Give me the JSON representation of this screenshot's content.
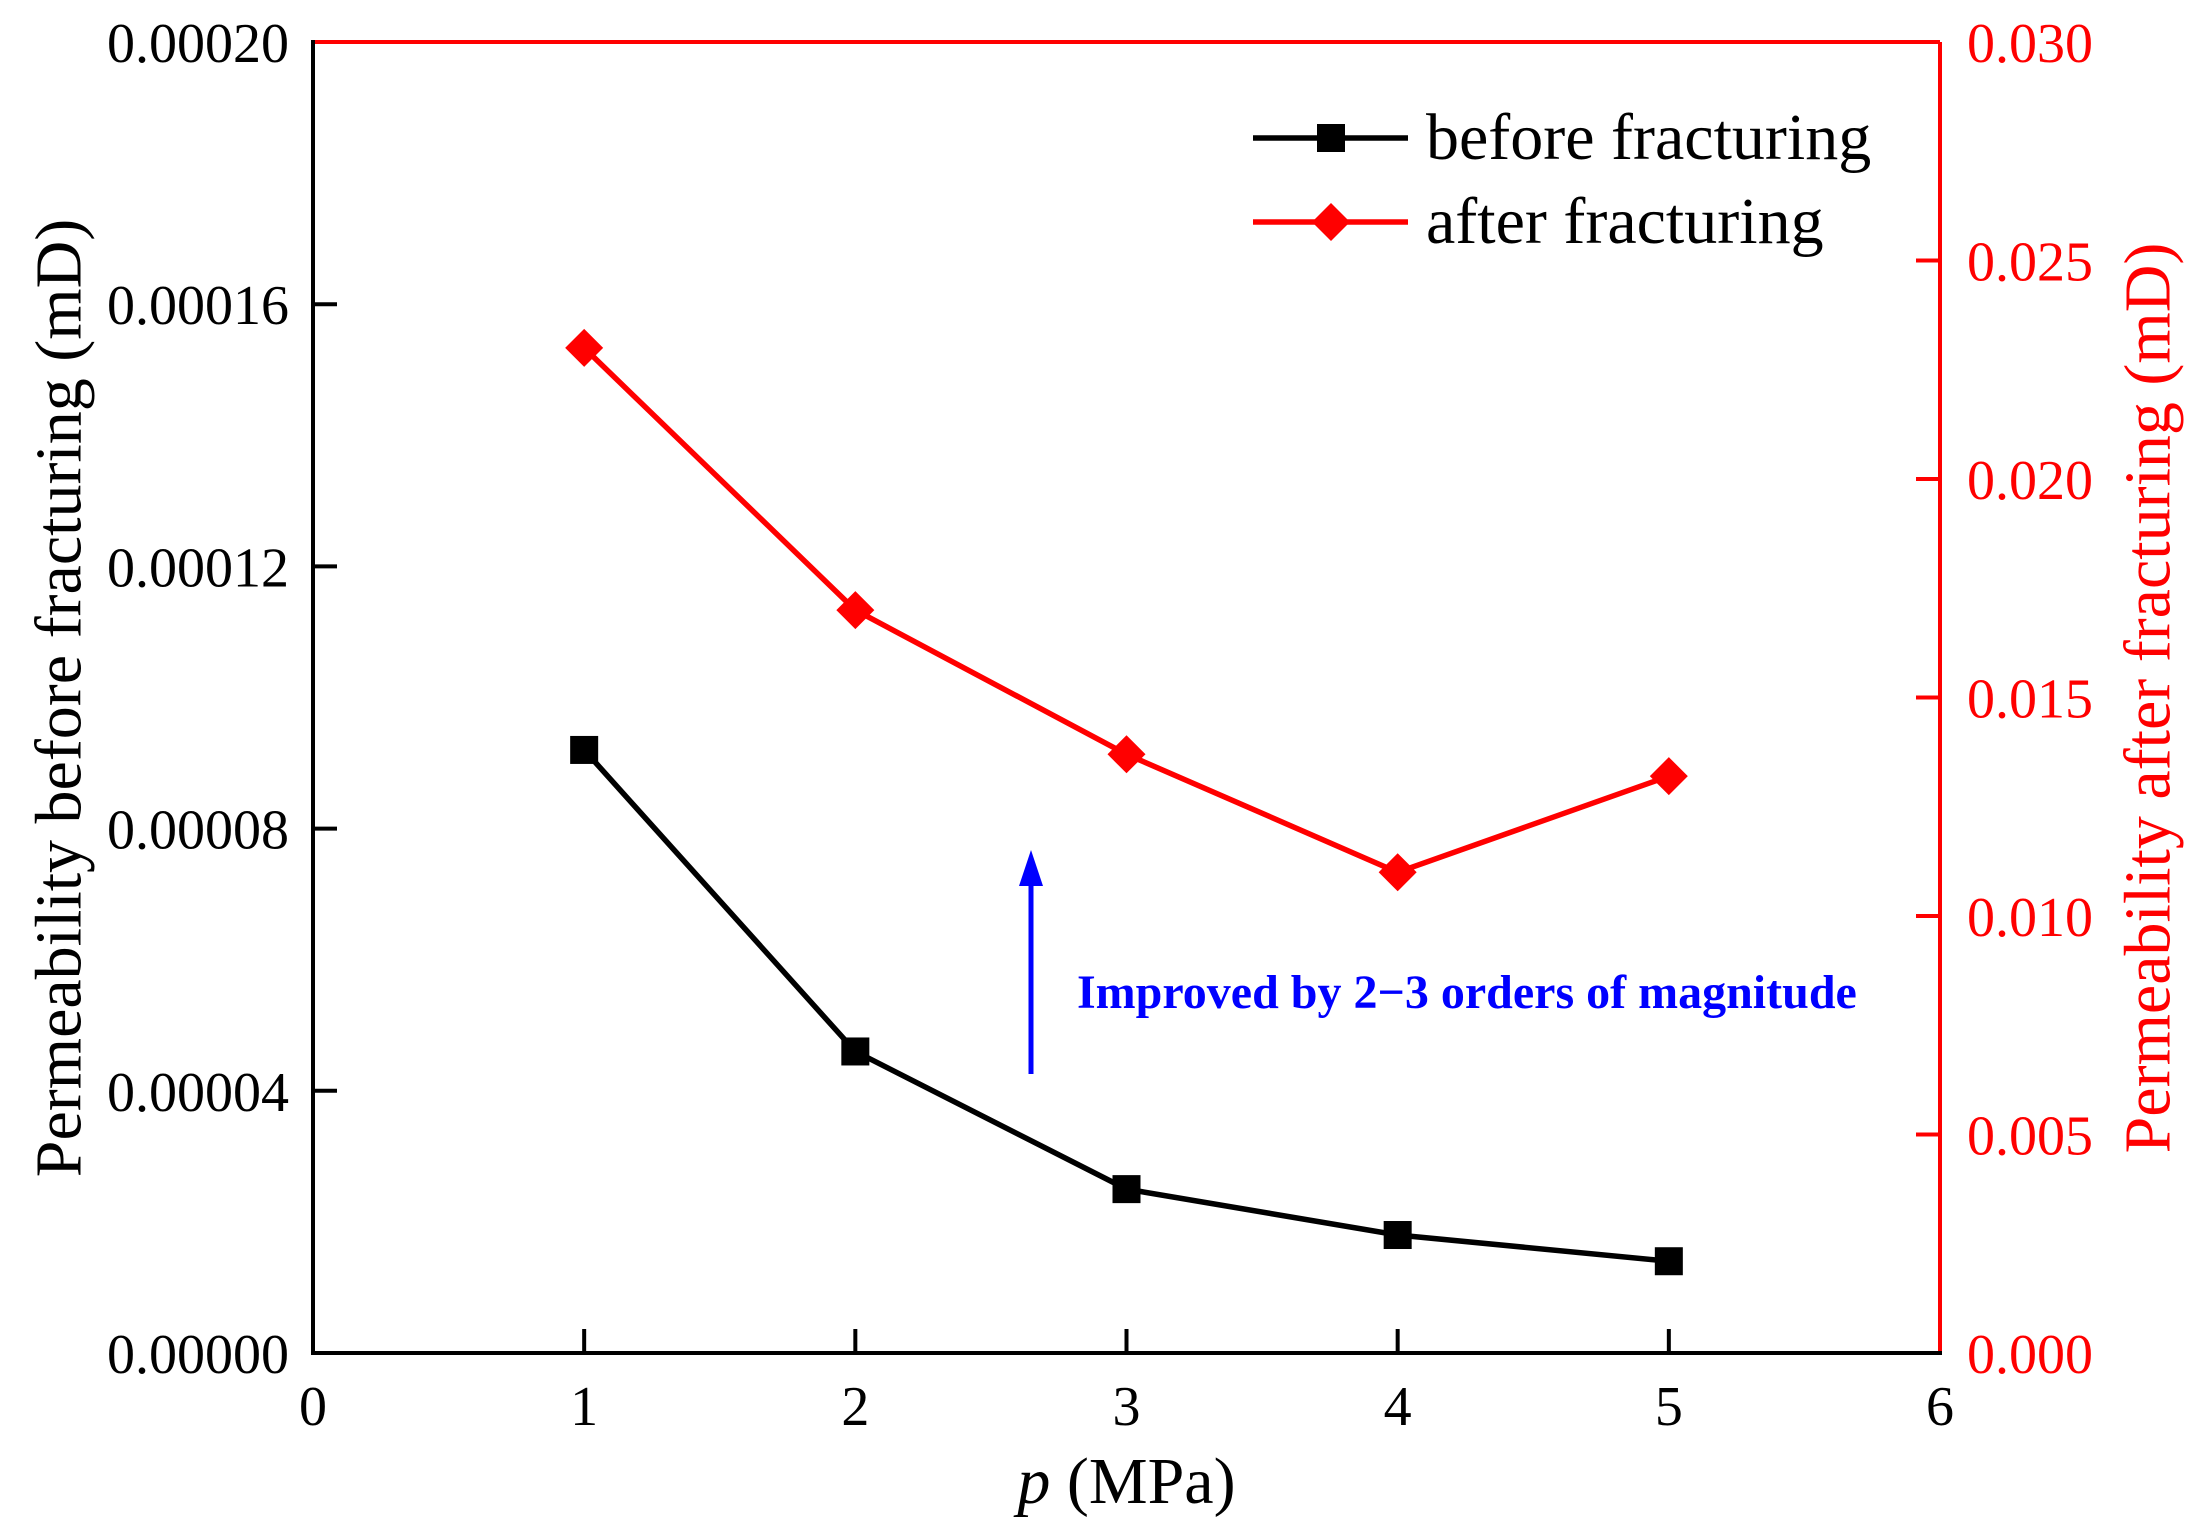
{
  "chart_data": {
    "type": "line",
    "x": [
      1,
      2,
      3,
      4,
      5
    ],
    "xlim": [
      0,
      6
    ],
    "xticks": [
      "0",
      "1",
      "2",
      "3",
      "4",
      "5",
      "6"
    ],
    "xlabel_var": "p",
    "xlabel_unit": " (MPa)",
    "ylabel_left": "Permeability before fracturing (mD)",
    "ylim_left": [
      0,
      0.0002
    ],
    "yticks_left": [
      "0.00000",
      "0.00004",
      "0.00008",
      "0.00012",
      "0.00016",
      "0.00020"
    ],
    "ylabel_right": "Permeability after fracturing (mD)",
    "ylim_right": [
      0,
      0.03
    ],
    "yticks_right": [
      "0.000",
      "0.005",
      "0.010",
      "0.015",
      "0.020",
      "0.025",
      "0.030"
    ],
    "series": [
      {
        "name": "before fracturing",
        "y_axis": "left",
        "color": "#000000",
        "marker": "square",
        "values": [
          9.2e-05,
          4.6e-05,
          2.5e-05,
          1.8e-05,
          1.4e-05
        ]
      },
      {
        "name": "after fracturing",
        "y_axis": "right",
        "color": "#ff0000",
        "marker": "diamond",
        "values": [
          0.023,
          0.017,
          0.0137,
          0.011,
          0.0132
        ]
      }
    ],
    "legend_position": "top-right",
    "annotation": {
      "text": "Improved by 2−3 orders of magnitude",
      "color": "#0000ff"
    }
  }
}
